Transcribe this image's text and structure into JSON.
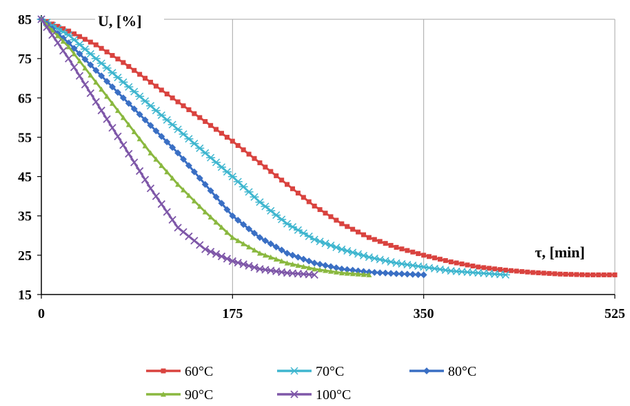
{
  "chart_data": {
    "type": "line",
    "xlabel": "τ, [min]",
    "ylabel": "U, [%]",
    "xlim": [
      0,
      525
    ],
    "ylim": [
      15,
      85
    ],
    "x_ticks": [
      0,
      175,
      350,
      525
    ],
    "y_ticks": [
      15,
      25,
      35,
      45,
      55,
      65,
      75,
      85
    ],
    "grid": "vertical lines at x ticks",
    "legend_position": "bottom",
    "series": [
      {
        "name": "60°C",
        "color": "#d9433f",
        "marker": "square",
        "x": [
          0,
          25,
          50,
          75,
          100,
          125,
          150,
          175,
          200,
          225,
          250,
          275,
          300,
          325,
          350,
          375,
          400,
          425,
          450,
          475,
          500,
          525
        ],
        "y": [
          85,
          82,
          78.5,
          74,
          69,
          64,
          59,
          54,
          48.5,
          43,
          37.5,
          33,
          29.5,
          27,
          25,
          23.3,
          22,
          21.2,
          20.6,
          20.2,
          20,
          20
        ]
      },
      {
        "name": "70°C",
        "color": "#3fb6cf",
        "marker": "star",
        "x": [
          0,
          25,
          50,
          75,
          100,
          125,
          150,
          175,
          200,
          225,
          250,
          275,
          300,
          325,
          350,
          375,
          400,
          425
        ],
        "y": [
          85,
          81,
          75,
          69,
          63,
          57,
          51,
          45,
          38.5,
          33,
          29,
          26.5,
          24.5,
          23,
          22,
          21,
          20.5,
          20
        ]
      },
      {
        "name": "80°C",
        "color": "#3a6fc4",
        "marker": "diamond",
        "x": [
          0,
          25,
          50,
          75,
          100,
          125,
          150,
          175,
          200,
          225,
          250,
          275,
          300,
          325,
          350
        ],
        "y": [
          85,
          79,
          72,
          65,
          58,
          51,
          43,
          35,
          29.5,
          25.5,
          23,
          21.5,
          20.7,
          20.3,
          20
        ]
      },
      {
        "name": "90°C",
        "color": "#8ab83f",
        "marker": "triangle",
        "x": [
          0,
          25,
          50,
          75,
          100,
          125,
          150,
          175,
          200,
          225,
          250,
          275,
          300
        ],
        "y": [
          85,
          78,
          69,
          60,
          51,
          43,
          36,
          29.5,
          25.5,
          23,
          21.5,
          20.5,
          20
        ]
      },
      {
        "name": "100°C",
        "color": "#7e57a8",
        "marker": "x",
        "x": [
          0,
          25,
          50,
          75,
          100,
          125,
          150,
          175,
          200,
          225,
          250
        ],
        "y": [
          85,
          75,
          64,
          53,
          42,
          32,
          26.5,
          23.5,
          21.5,
          20.5,
          20
        ]
      }
    ]
  }
}
